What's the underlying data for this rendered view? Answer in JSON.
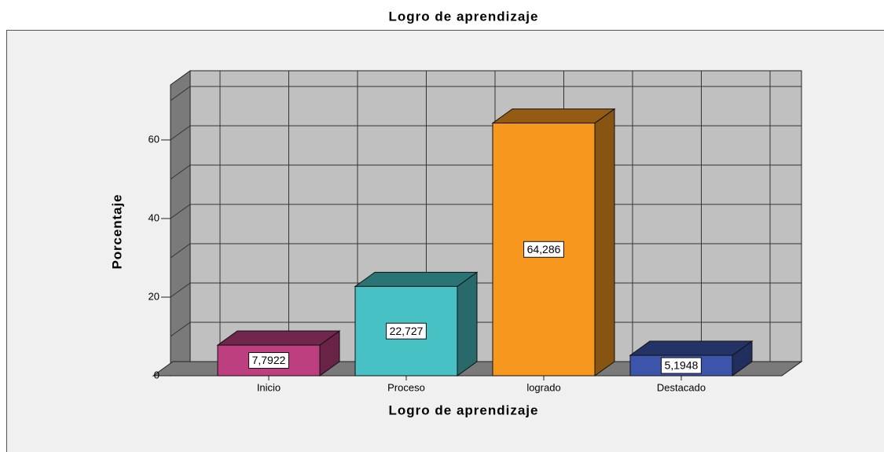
{
  "chart_data": {
    "type": "bar3d",
    "title": "Logro de aprendizaje",
    "x_label": "Logro de aprendizaje",
    "y_label": "Porcentaje",
    "categories": [
      "Inicio",
      "Proceso",
      "logrado",
      "Destacado"
    ],
    "values": [
      7.7922,
      22.727,
      64.286,
      5.1948
    ],
    "value_labels": [
      "7,7922",
      "22,727",
      "64,286",
      "5,1948"
    ],
    "colors": [
      "#bd3f80",
      "#48c1c5",
      "#f7981e",
      "#3c55aa"
    ],
    "ylim": [
      0,
      74
    ],
    "yticks": [
      0,
      20,
      40,
      60
    ],
    "grid": true
  }
}
